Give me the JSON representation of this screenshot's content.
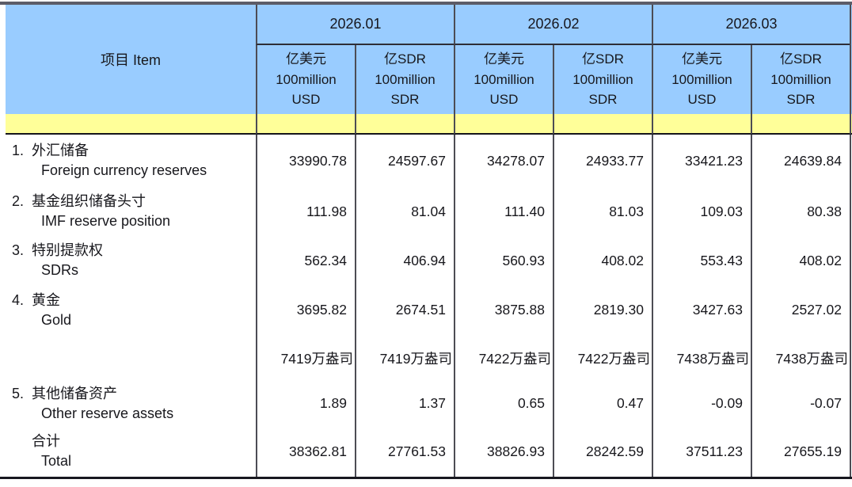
{
  "table": {
    "title_semantic": "official reserve assets table",
    "colors": {
      "header_blue": "#99ccff",
      "band_yellow": "#ffff99",
      "border_dark": "#4c4c54",
      "top_rule": "#5c5c68",
      "text": "#17171c"
    },
    "header": {
      "item_label": "项目 Item",
      "months": [
        "2026.01",
        "2026.02",
        "2026.03"
      ],
      "unit_usd": "亿美元\n100million\nUSD",
      "unit_sdr": "亿SDR\n100million\nSDR"
    },
    "rows": [
      {
        "num": "1.",
        "zh": "外汇储备",
        "en": "Foreign currency reserves",
        "values": [
          "33990.78",
          "24597.67",
          "34278.07",
          "24933.77",
          "33421.23",
          "24639.84"
        ]
      },
      {
        "num": "2.",
        "zh": "基金组织储备头寸",
        "en": "IMF reserve position",
        "values": [
          "111.98",
          "81.04",
          "111.40",
          "81.03",
          "109.03",
          "80.38"
        ]
      },
      {
        "num": "3.",
        "zh": "特别提款权",
        "en": "SDRs",
        "values": [
          "562.34",
          "406.94",
          "560.93",
          "408.02",
          "553.43",
          "408.02"
        ]
      },
      {
        "num": "4.",
        "zh": "黄金",
        "en": "Gold",
        "values": [
          "3695.82",
          "2674.51",
          "3875.88",
          "2819.30",
          "3427.63",
          "2527.02"
        ]
      },
      {
        "num": "",
        "zh": "",
        "en": "",
        "values": [
          "7419万盎司",
          "7419万盎司",
          "7422万盎司",
          "7422万盎司",
          "7438万盎司",
          "7438万盎司"
        ]
      },
      {
        "num": "5.",
        "zh": "其他储备资产",
        "en": "Other reserve assets",
        "values": [
          "1.89",
          "1.37",
          "0.65",
          "0.47",
          "-0.09",
          "-0.07"
        ]
      },
      {
        "num": "",
        "zh": "合计",
        "en": "Total",
        "values": [
          "38362.81",
          "27761.53",
          "38826.93",
          "28242.59",
          "37511.23",
          "27655.19"
        ]
      }
    ]
  }
}
